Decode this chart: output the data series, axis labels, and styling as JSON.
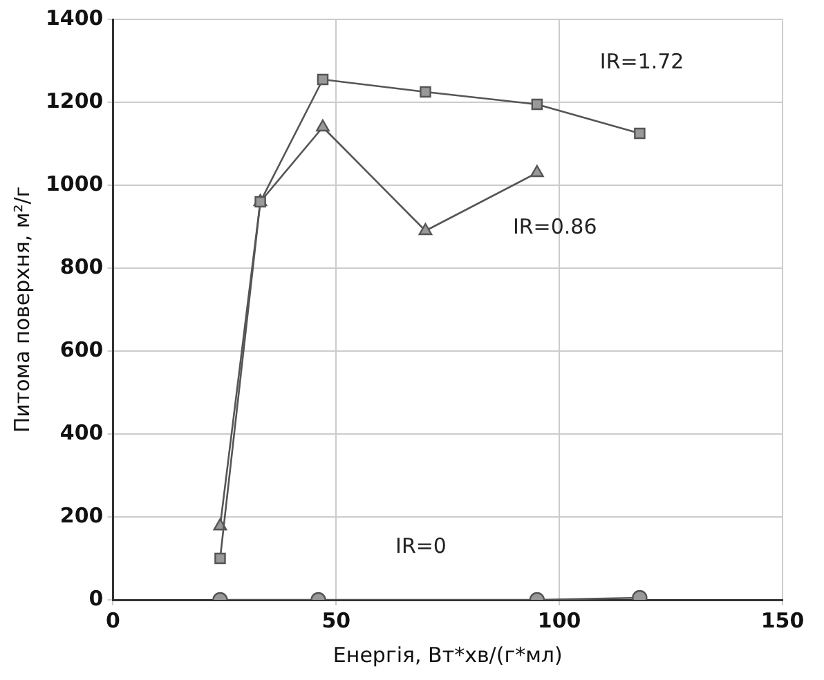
{
  "chart_data": {
    "type": "line",
    "xlabel": "Енергія, Вт*хв/(г*мл)",
    "ylabel": "Питома поверхня, м²/г",
    "xlim": [
      0,
      150
    ],
    "xticks": [
      0,
      50,
      100,
      150
    ],
    "ylim": [
      0,
      1400
    ],
    "yticks": [
      0,
      200,
      400,
      600,
      800,
      1000,
      1200,
      1400
    ],
    "grid": true,
    "legend": false,
    "series": [
      {
        "marker": "square",
        "color": "#555555",
        "x": [
          24,
          33,
          47,
          70,
          95,
          118
        ],
        "values": [
          100,
          960,
          1255,
          1225,
          1195,
          1125
        ]
      },
      {
        "marker": "triangle",
        "color": "#555555",
        "x": [
          24,
          33,
          47,
          70,
          95
        ],
        "values": [
          178,
          960,
          1140,
          890,
          1030
        ]
      },
      {
        "marker": "circle",
        "color": "#555555",
        "x": [
          24,
          46,
          95,
          118
        ],
        "values": [
          0,
          0,
          0,
          5
        ]
      }
    ],
    "annotations": [
      "IR=1.72",
      "IR=0.86",
      "IR=0"
    ]
  }
}
